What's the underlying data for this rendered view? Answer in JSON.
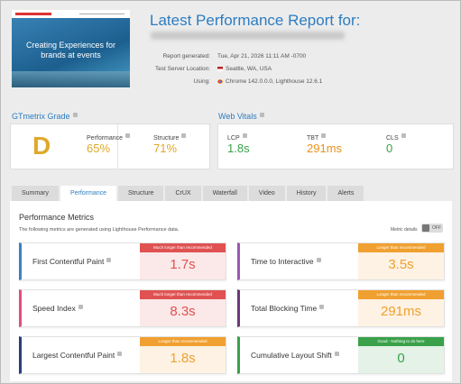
{
  "header": {
    "thumbnail_text": "Creating Experiences for brands at events",
    "title": "Latest Performance Report for:",
    "details": [
      {
        "label": "Report generated:",
        "value": "Tue, Apr 21, 2026 11:11 AM -0700"
      },
      {
        "label": "Test Server Location:",
        "value": "Seattle, WA, USA"
      },
      {
        "label": "Using:",
        "value": "Chrome 142.0.0.0, Lighthouse 12.6.1"
      }
    ]
  },
  "grade": {
    "title": "GTmetrix Grade",
    "grade": "D",
    "scores": [
      {
        "label": "Performance",
        "value": "65%",
        "color": "#e0a82a"
      },
      {
        "label": "Structure",
        "value": "71%",
        "color": "#e0a82a"
      }
    ]
  },
  "web_vitals": {
    "title": "Web Vitals",
    "metrics": [
      {
        "label": "LCP",
        "value": "1.8s",
        "color": "#3aa14a"
      },
      {
        "label": "TBT",
        "value": "291ms",
        "color": "#e8921c"
      },
      {
        "label": "CLS",
        "value": "0",
        "color": "#3aa14a"
      }
    ]
  },
  "tabs": [
    "Summary",
    "Performance",
    "Structure",
    "CrUX",
    "Waterfall",
    "Video",
    "History",
    "Alerts"
  ],
  "active_tab": 1,
  "metrics": {
    "title": "Performance Metrics",
    "description": "The following metrics are generated using Lighthouse Performance data.",
    "toggle_label": "Metric details",
    "toggle_state": "OFF",
    "items": [
      {
        "label": "First Contentful Paint",
        "badge": "Much longer than recommended",
        "value": "1.7s",
        "status_color": "#e05252",
        "accent": "#3b82c4"
      },
      {
        "label": "Time to Interactive",
        "badge": "Longer than recommended",
        "value": "3.5s",
        "status_color": "#f0a030",
        "accent": "#9b59b6"
      },
      {
        "label": "Speed Index",
        "badge": "Much longer than recommended",
        "value": "8.3s",
        "status_color": "#e05252",
        "accent": "#e0507a"
      },
      {
        "label": "Total Blocking Time",
        "badge": "Longer than recommended",
        "value": "291ms",
        "status_color": "#f0a030",
        "accent": "#6b3a7a"
      },
      {
        "label": "Largest Contentful Paint",
        "badge": "Longer than recommended",
        "value": "1.8s",
        "status_color": "#f0a030",
        "accent": "#2c3e7a"
      },
      {
        "label": "Cumulative Layout Shift",
        "badge": "Good - Nothing to do here",
        "value": "0",
        "status_color": "#3aa14a",
        "accent": "#3aa14a"
      }
    ]
  }
}
